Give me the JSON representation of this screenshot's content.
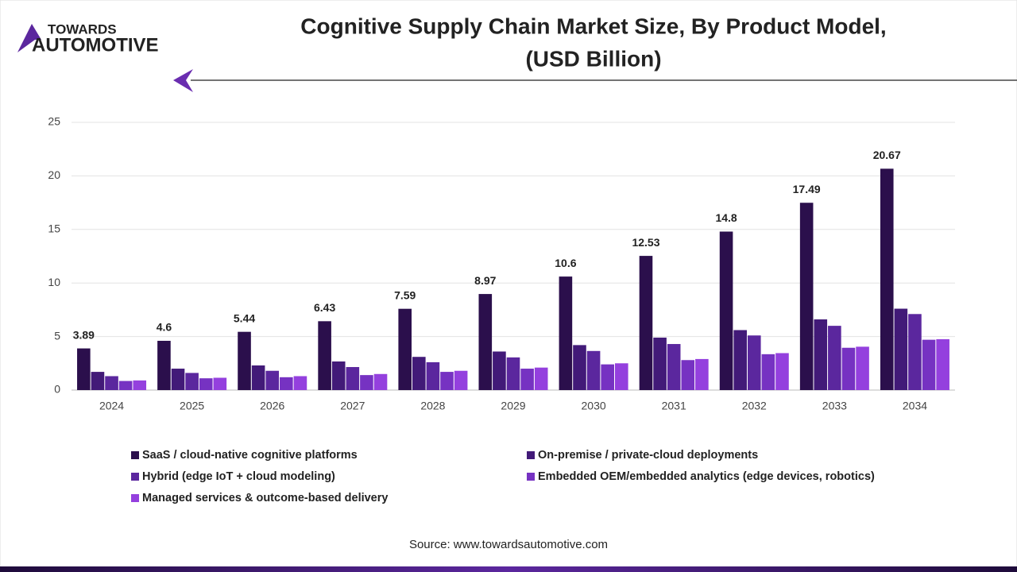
{
  "logo": {
    "line1": "TOWARDS",
    "line2": "AUTOMOTIVE"
  },
  "chart_data": {
    "type": "bar",
    "title": "Cognitive Supply Chain Market Size, By Product Model,",
    "subtitle": "(USD Billion)",
    "source": "Source: www.towardsautomotive.com",
    "categories": [
      "2024",
      "2025",
      "2026",
      "2027",
      "2028",
      "2029",
      "2030",
      "2031",
      "2032",
      "2033",
      "2034"
    ],
    "series": [
      {
        "name": "SaaS / cloud-native cognitive platforms",
        "color": "#2b0f4c",
        "show_labels": true,
        "values": [
          3.89,
          4.6,
          5.44,
          6.43,
          7.59,
          8.97,
          10.6,
          12.53,
          14.8,
          17.49,
          20.67
        ]
      },
      {
        "name": "On-premise / private-cloud deployments",
        "color": "#421a78",
        "values": [
          1.7,
          2.0,
          2.3,
          2.67,
          3.1,
          3.6,
          4.2,
          4.9,
          5.6,
          6.6,
          7.6
        ]
      },
      {
        "name": "Hybrid (edge IoT + cloud modeling)",
        "color": "#5b279e",
        "values": [
          1.3,
          1.6,
          1.8,
          2.15,
          2.6,
          3.05,
          3.65,
          4.3,
          5.1,
          6.0,
          7.1
        ]
      },
      {
        "name": "Embedded OEM/embedded analytics (edge devices, robotics)",
        "color": "#7632c2",
        "values": [
          0.85,
          1.1,
          1.2,
          1.4,
          1.7,
          2.0,
          2.4,
          2.8,
          3.35,
          3.95,
          4.7
        ]
      },
      {
        "name": "Managed services & outcome-based delivery",
        "color": "#9440de",
        "values": [
          0.9,
          1.15,
          1.3,
          1.5,
          1.8,
          2.1,
          2.5,
          2.9,
          3.45,
          4.05,
          4.75
        ]
      }
    ],
    "ylim": [
      0,
      25
    ],
    "yticks": [
      0,
      5,
      10,
      15,
      20,
      25
    ],
    "grid": true
  }
}
